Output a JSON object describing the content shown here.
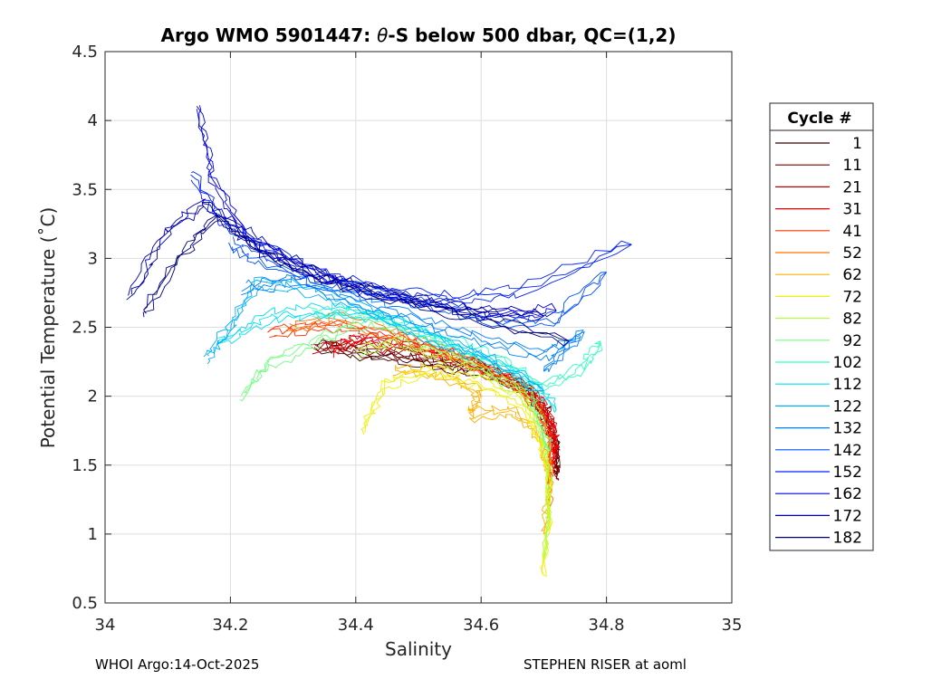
{
  "chart_data": {
    "type": "line",
    "title": "Argo WMO 5901447: θ-S below 500 dbar,  QC=(1,2)",
    "title_prefix": "Argo WMO 5901447: ",
    "title_theta": "θ",
    "title_suffix": "-S below 500 dbar,  QC=(1,2)",
    "xlabel": "Salinity",
    "ylabel": "Potential Temperature (˚C)",
    "xlim": [
      34,
      35
    ],
    "ylim": [
      0.5,
      4.5
    ],
    "xticks": [
      "34",
      "34.2",
      "34.4",
      "34.6",
      "34.8",
      "35"
    ],
    "yticks": [
      "0.5",
      "1",
      "1.5",
      "2",
      "2.5",
      "3",
      "3.5",
      "4",
      "4.5"
    ],
    "grid": true,
    "legend_position": "outside-right",
    "legend_title": "Cycle #",
    "series": [
      {
        "name": "1",
        "color": "#3a0000",
        "points": [
          [
            34.34,
            2.36
          ],
          [
            34.42,
            2.3
          ],
          [
            34.52,
            2.24
          ],
          [
            34.6,
            2.18
          ],
          [
            34.67,
            2.05
          ],
          [
            34.7,
            1.85
          ],
          [
            34.72,
            1.65
          ],
          [
            34.72,
            1.45
          ]
        ]
      },
      {
        "name": "11",
        "color": "#7a0000",
        "points": [
          [
            34.35,
            2.38
          ],
          [
            34.43,
            2.32
          ],
          [
            34.52,
            2.26
          ],
          [
            34.6,
            2.2
          ],
          [
            34.67,
            2.08
          ],
          [
            34.71,
            1.88
          ],
          [
            34.72,
            1.6
          ],
          [
            34.72,
            1.4
          ]
        ]
      },
      {
        "name": "21",
        "color": "#bd0000",
        "points": [
          [
            34.33,
            2.34
          ],
          [
            34.4,
            2.4
          ],
          [
            34.46,
            2.36
          ],
          [
            34.54,
            2.28
          ],
          [
            34.62,
            2.18
          ],
          [
            34.68,
            2.02
          ],
          [
            34.71,
            1.8
          ],
          [
            34.72,
            1.55
          ]
        ]
      },
      {
        "name": "31",
        "color": "#f00000",
        "points": [
          [
            34.36,
            2.33
          ],
          [
            34.41,
            2.42
          ],
          [
            34.48,
            2.38
          ],
          [
            34.56,
            2.28
          ],
          [
            34.64,
            2.14
          ],
          [
            34.7,
            1.95
          ],
          [
            34.72,
            1.7
          ],
          [
            34.71,
            1.45
          ]
        ]
      },
      {
        "name": "41",
        "color": "#ff3000",
        "points": [
          [
            34.26,
            2.46
          ],
          [
            34.34,
            2.52
          ],
          [
            34.44,
            2.46
          ],
          [
            34.54,
            2.32
          ],
          [
            34.63,
            2.16
          ],
          [
            34.69,
            1.96
          ],
          [
            34.71,
            1.7
          ],
          [
            34.71,
            1.38
          ]
        ]
      },
      {
        "name": "52",
        "color": "#ff7000",
        "points": [
          [
            34.29,
            2.49
          ],
          [
            34.38,
            2.56
          ],
          [
            34.48,
            2.42
          ],
          [
            34.58,
            2.26
          ],
          [
            34.66,
            2.06
          ],
          [
            34.7,
            1.82
          ],
          [
            34.71,
            1.5
          ],
          [
            34.71,
            1.2
          ]
        ]
      },
      {
        "name": "62",
        "color": "#ffb000",
        "points": [
          [
            34.46,
            2.2
          ],
          [
            34.54,
            2.16
          ],
          [
            34.6,
            2.02
          ],
          [
            34.58,
            1.86
          ],
          [
            34.65,
            1.9
          ],
          [
            34.69,
            1.72
          ],
          [
            34.71,
            1.4
          ],
          [
            34.7,
            1.0
          ]
        ]
      },
      {
        "name": "72",
        "color": "#f0f000",
        "points": [
          [
            34.41,
            1.76
          ],
          [
            34.45,
            2.1
          ],
          [
            34.52,
            2.18
          ],
          [
            34.6,
            2.1
          ],
          [
            34.67,
            1.92
          ],
          [
            34.7,
            1.6
          ],
          [
            34.71,
            1.2
          ],
          [
            34.7,
            0.7
          ]
        ]
      },
      {
        "name": "82",
        "color": "#b0ff40",
        "points": [
          [
            34.4,
            2.3
          ],
          [
            34.46,
            2.4
          ],
          [
            34.54,
            2.28
          ],
          [
            34.61,
            2.16
          ],
          [
            34.67,
            2.0
          ],
          [
            34.7,
            1.7
          ],
          [
            34.71,
            1.3
          ],
          [
            34.7,
            0.82
          ]
        ]
      },
      {
        "name": "92",
        "color": "#70ff80",
        "points": [
          [
            34.22,
            2.0
          ],
          [
            34.26,
            2.24
          ],
          [
            34.34,
            2.4
          ],
          [
            34.42,
            2.55
          ],
          [
            34.52,
            2.4
          ],
          [
            34.61,
            2.22
          ],
          [
            34.68,
            2.02
          ],
          [
            34.71,
            1.6
          ]
        ]
      },
      {
        "name": "102",
        "color": "#30ffc0",
        "points": [
          [
            34.33,
            2.6
          ],
          [
            34.4,
            2.62
          ],
          [
            34.48,
            2.52
          ],
          [
            34.56,
            2.38
          ],
          [
            34.64,
            2.24
          ],
          [
            34.7,
            2.06
          ],
          [
            34.76,
            2.2
          ],
          [
            34.79,
            2.4
          ]
        ]
      },
      {
        "name": "112",
        "color": "#00e0f0",
        "points": [
          [
            34.18,
            2.38
          ],
          [
            34.26,
            2.58
          ],
          [
            34.34,
            2.62
          ],
          [
            34.44,
            2.58
          ],
          [
            34.54,
            2.4
          ],
          [
            34.62,
            2.24
          ],
          [
            34.68,
            2.1
          ],
          [
            34.72,
            1.9
          ]
        ]
      },
      {
        "name": "122",
        "color": "#00b0ff",
        "points": [
          [
            34.16,
            2.26
          ],
          [
            34.2,
            2.5
          ],
          [
            34.24,
            2.82
          ],
          [
            34.3,
            2.8
          ],
          [
            34.4,
            2.66
          ],
          [
            34.5,
            2.46
          ],
          [
            34.6,
            2.3
          ],
          [
            34.7,
            2.04
          ]
        ]
      },
      {
        "name": "132",
        "color": "#0080ff",
        "points": [
          [
            34.22,
            2.78
          ],
          [
            34.3,
            2.84
          ],
          [
            34.4,
            2.7
          ],
          [
            34.5,
            2.56
          ],
          [
            34.6,
            2.42
          ],
          [
            34.7,
            2.3
          ],
          [
            34.76,
            2.45
          ],
          [
            34.7,
            2.18
          ]
        ]
      },
      {
        "name": "142",
        "color": "#0050ff",
        "points": [
          [
            34.2,
            3.1
          ],
          [
            34.26,
            2.96
          ],
          [
            34.34,
            2.82
          ],
          [
            34.44,
            2.74
          ],
          [
            34.54,
            2.64
          ],
          [
            34.64,
            2.52
          ],
          [
            34.72,
            2.56
          ],
          [
            34.8,
            2.9
          ]
        ]
      },
      {
        "name": "152",
        "color": "#0020ff",
        "points": [
          [
            34.14,
            3.6
          ],
          [
            34.18,
            3.3
          ],
          [
            34.26,
            3.06
          ],
          [
            34.36,
            2.86
          ],
          [
            34.46,
            2.76
          ],
          [
            34.56,
            2.7
          ],
          [
            34.66,
            2.76
          ],
          [
            34.84,
            3.1
          ]
        ]
      },
      {
        "name": "162",
        "color": "#0000e0",
        "points": [
          [
            34.15,
            4.1
          ],
          [
            34.17,
            3.6
          ],
          [
            34.22,
            3.2
          ],
          [
            34.3,
            2.96
          ],
          [
            34.4,
            2.78
          ],
          [
            34.5,
            2.68
          ],
          [
            34.62,
            2.6
          ],
          [
            34.72,
            2.62
          ]
        ]
      },
      {
        "name": "172",
        "color": "#0000b0",
        "points": [
          [
            34.04,
            2.72
          ],
          [
            34.1,
            3.2
          ],
          [
            34.16,
            3.4
          ],
          [
            34.24,
            3.1
          ],
          [
            34.34,
            2.88
          ],
          [
            34.46,
            2.72
          ],
          [
            34.58,
            2.62
          ],
          [
            34.7,
            2.58
          ]
        ]
      },
      {
        "name": "182",
        "color": "#000080",
        "points": [
          [
            34.06,
            2.6
          ],
          [
            34.12,
            3.02
          ],
          [
            34.18,
            3.3
          ],
          [
            34.26,
            3.02
          ],
          [
            34.36,
            2.84
          ],
          [
            34.48,
            2.7
          ],
          [
            34.6,
            2.56
          ],
          [
            34.74,
            2.4
          ]
        ]
      }
    ]
  },
  "footer": {
    "left": "WHOI Argo:14-Oct-2025",
    "right": "STEPHEN RISER at aoml"
  }
}
